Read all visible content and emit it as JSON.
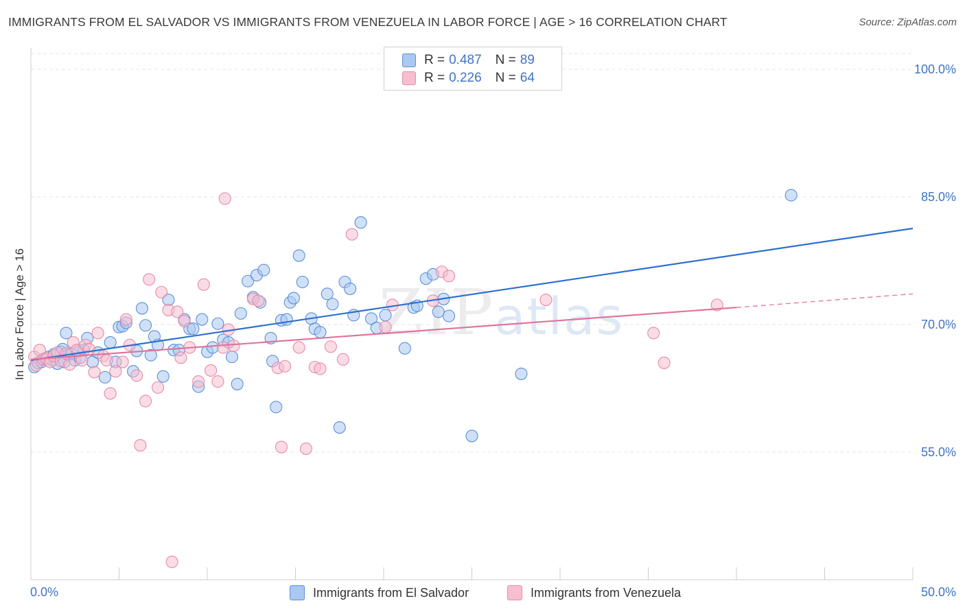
{
  "title": "IMMIGRANTS FROM EL SALVADOR VS IMMIGRANTS FROM VENEZUELA IN LABOR FORCE | AGE > 16 CORRELATION CHART",
  "source": "Source: ZipAtlas.com",
  "watermark": {
    "zip": "ZIP",
    "atlas": "atlas"
  },
  "legend": {
    "series1": {
      "r_label": "R = ",
      "r_value": "0.487",
      "n_label": "N = ",
      "n_value": "89"
    },
    "series2": {
      "r_label": "R = ",
      "r_value": "0.226",
      "n_label": "N = ",
      "n_value": "64"
    }
  },
  "colors": {
    "blue_fill": "#aac8f0",
    "blue_stroke": "#5b8fd6",
    "blue_line": "#2b6fd1",
    "pink_fill": "#f6bfd0",
    "pink_stroke": "#e88aa8",
    "pink_line": "#e0739b",
    "axis_label": "#3f73c4",
    "grid": "#e6e6e6"
  },
  "chart_data": {
    "type": "scatter",
    "xlabel": "",
    "ylabel": "In Labor Force | Age > 16",
    "xlim": [
      0,
      50
    ],
    "ylim": [
      40,
      102.5
    ],
    "x_tick_labels": [
      "0.0%",
      "50.0%"
    ],
    "y_ticks": [
      55,
      70,
      85,
      100
    ],
    "y_tick_labels": [
      "55.0%",
      "70.0%",
      "85.0%",
      "100.0%"
    ],
    "grid": "horizontal dashed",
    "legend_position": "top-center",
    "series": [
      {
        "name": "Immigrants from El Salvador",
        "color": "#aac8f0",
        "trend": {
          "x": [
            0,
            50
          ],
          "y": [
            65.8,
            81.3
          ]
        },
        "points": [
          [
            0.2,
            65.0
          ],
          [
            0.4,
            65.5
          ],
          [
            0.6,
            65.6
          ],
          [
            0.8,
            66.0
          ],
          [
            1.0,
            66.2
          ],
          [
            1.2,
            65.8
          ],
          [
            1.3,
            66.5
          ],
          [
            1.5,
            65.4
          ],
          [
            1.7,
            66.8
          ],
          [
            1.8,
            67.1
          ],
          [
            1.9,
            65.6
          ],
          [
            2.1,
            66.4
          ],
          [
            2.3,
            66.6
          ],
          [
            2.5,
            65.8
          ],
          [
            2.7,
            66.9
          ],
          [
            2.8,
            66.1
          ],
          [
            3.0,
            67.0
          ],
          [
            3.2,
            68.4
          ],
          [
            3.5,
            65.6
          ],
          [
            3.8,
            66.7
          ],
          [
            4.2,
            63.8
          ],
          [
            4.5,
            67.9
          ],
          [
            5.0,
            69.7
          ],
          [
            5.2,
            69.8
          ],
          [
            5.4,
            70.2
          ],
          [
            5.8,
            64.5
          ],
          [
            6.0,
            66.9
          ],
          [
            6.3,
            71.9
          ],
          [
            6.5,
            69.9
          ],
          [
            6.8,
            66.4
          ],
          [
            7.0,
            68.6
          ],
          [
            7.2,
            67.6
          ],
          [
            7.5,
            63.9
          ],
          [
            7.8,
            72.9
          ],
          [
            8.1,
            67.0
          ],
          [
            8.4,
            67.0
          ],
          [
            8.7,
            70.6
          ],
          [
            9.0,
            69.5
          ],
          [
            9.2,
            69.5
          ],
          [
            9.5,
            62.7
          ],
          [
            9.7,
            70.6
          ],
          [
            10.0,
            66.8
          ],
          [
            10.3,
            67.3
          ],
          [
            10.6,
            70.1
          ],
          [
            10.9,
            68.2
          ],
          [
            11.2,
            67.9
          ],
          [
            11.4,
            66.2
          ],
          [
            11.7,
            63.0
          ],
          [
            11.9,
            71.3
          ],
          [
            12.3,
            75.1
          ],
          [
            12.6,
            73.2
          ],
          [
            12.8,
            75.8
          ],
          [
            13.0,
            72.6
          ],
          [
            13.2,
            76.4
          ],
          [
            13.6,
            68.4
          ],
          [
            13.7,
            65.7
          ],
          [
            13.9,
            60.3
          ],
          [
            14.2,
            70.5
          ],
          [
            14.5,
            70.6
          ],
          [
            14.7,
            72.6
          ],
          [
            14.9,
            73.1
          ],
          [
            15.2,
            78.1
          ],
          [
            15.4,
            75.0
          ],
          [
            15.9,
            70.7
          ],
          [
            16.1,
            69.5
          ],
          [
            16.4,
            69.1
          ],
          [
            16.8,
            73.6
          ],
          [
            17.1,
            72.4
          ],
          [
            17.5,
            57.9
          ],
          [
            17.8,
            75.0
          ],
          [
            18.1,
            74.2
          ],
          [
            18.3,
            71.1
          ],
          [
            18.7,
            82.0
          ],
          [
            19.3,
            70.7
          ],
          [
            19.6,
            69.6
          ],
          [
            20.1,
            71.1
          ],
          [
            21.2,
            67.2
          ],
          [
            21.7,
            72.0
          ],
          [
            21.9,
            72.2
          ],
          [
            22.4,
            75.4
          ],
          [
            22.8,
            75.9
          ],
          [
            23.1,
            71.5
          ],
          [
            23.4,
            73.0
          ],
          [
            23.7,
            71.0
          ],
          [
            25.0,
            56.9
          ],
          [
            27.8,
            64.2
          ],
          [
            43.1,
            85.2
          ],
          [
            4.8,
            65.6
          ],
          [
            2.0,
            69.0
          ]
        ]
      },
      {
        "name": "Immigrants from Venezuela",
        "color": "#f6bfd0",
        "trend": {
          "x": [
            0,
            40
          ],
          "y": [
            65.9,
            72.0
          ]
        },
        "trend_dashed": {
          "x": [
            40,
            50
          ],
          "y": [
            72.0,
            73.6
          ]
        },
        "points": [
          [
            0.2,
            66.2
          ],
          [
            0.3,
            65.2
          ],
          [
            0.5,
            67.0
          ],
          [
            0.7,
            65.9
          ],
          [
            0.9,
            66.0
          ],
          [
            1.1,
            65.6
          ],
          [
            1.3,
            66.3
          ],
          [
            1.5,
            66.7
          ],
          [
            1.7,
            65.7
          ],
          [
            2.0,
            66.6
          ],
          [
            2.2,
            65.3
          ],
          [
            2.4,
            67.9
          ],
          [
            2.6,
            67.0
          ],
          [
            2.9,
            65.8
          ],
          [
            3.1,
            67.6
          ],
          [
            3.3,
            67.1
          ],
          [
            3.6,
            64.4
          ],
          [
            3.8,
            69.0
          ],
          [
            4.1,
            66.3
          ],
          [
            4.3,
            65.8
          ],
          [
            4.5,
            61.9
          ],
          [
            4.8,
            64.5
          ],
          [
            5.2,
            65.6
          ],
          [
            5.4,
            70.6
          ],
          [
            5.6,
            67.6
          ],
          [
            6.0,
            64.0
          ],
          [
            6.2,
            55.8
          ],
          [
            6.5,
            61.0
          ],
          [
            6.7,
            75.3
          ],
          [
            7.2,
            62.6
          ],
          [
            7.4,
            73.8
          ],
          [
            7.8,
            71.7
          ],
          [
            8.0,
            42.1
          ],
          [
            8.3,
            71.5
          ],
          [
            8.5,
            66.1
          ],
          [
            8.7,
            70.4
          ],
          [
            9.0,
            67.3
          ],
          [
            9.5,
            63.3
          ],
          [
            9.8,
            74.7
          ],
          [
            10.2,
            64.6
          ],
          [
            10.6,
            63.3
          ],
          [
            10.9,
            67.3
          ],
          [
            11.0,
            84.8
          ],
          [
            11.2,
            69.4
          ],
          [
            11.5,
            67.5
          ],
          [
            12.6,
            73.0
          ],
          [
            12.9,
            72.8
          ],
          [
            14.2,
            55.6
          ],
          [
            14.0,
            64.9
          ],
          [
            14.4,
            65.1
          ],
          [
            15.2,
            67.3
          ],
          [
            15.6,
            55.4
          ],
          [
            16.1,
            65.0
          ],
          [
            16.4,
            64.8
          ],
          [
            17.0,
            67.4
          ],
          [
            17.7,
            65.9
          ],
          [
            18.2,
            80.6
          ],
          [
            20.1,
            69.7
          ],
          [
            20.5,
            72.3
          ],
          [
            22.8,
            72.8
          ],
          [
            23.3,
            76.2
          ],
          [
            23.7,
            75.7
          ],
          [
            29.2,
            72.9
          ],
          [
            38.9,
            72.3
          ]
        ],
        "extra_points": [
          [
            35.3,
            69.0
          ],
          [
            35.9,
            65.5
          ]
        ]
      }
    ]
  }
}
